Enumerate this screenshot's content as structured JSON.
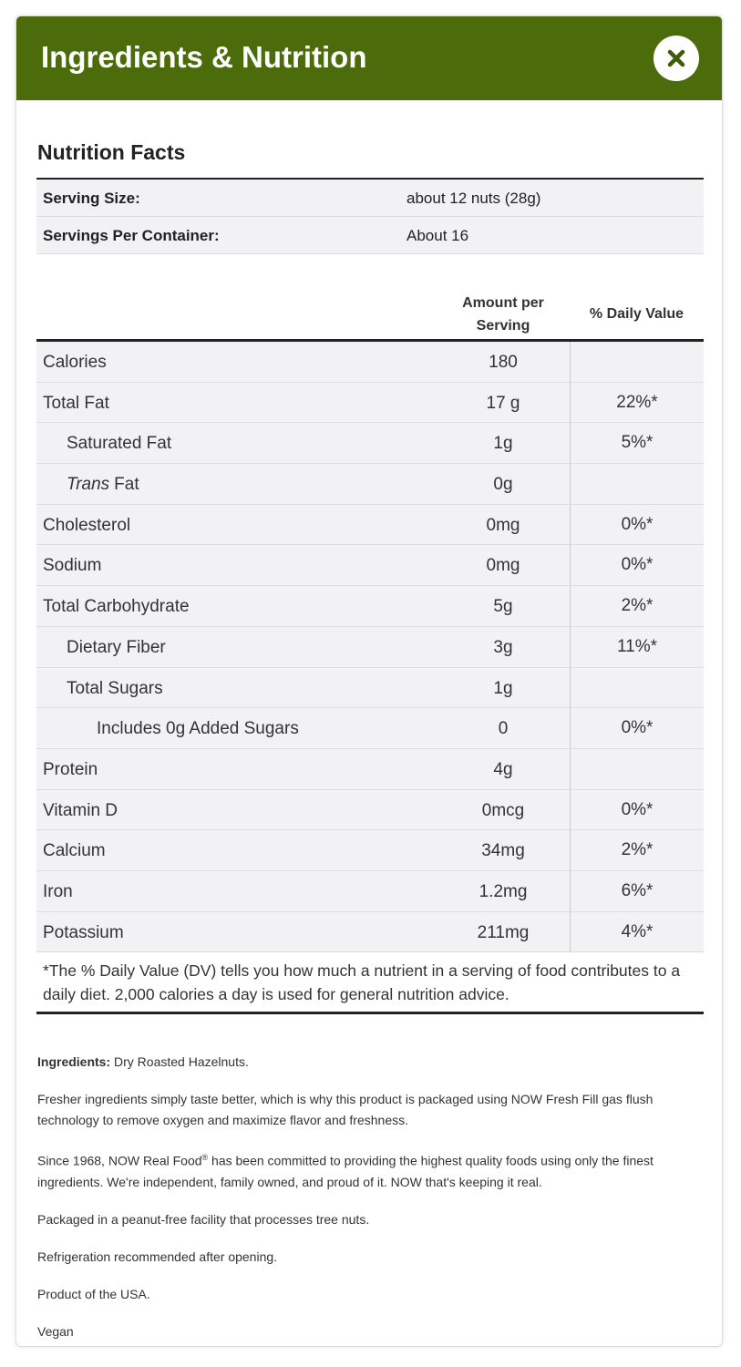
{
  "header": {
    "title": "Ingredients & Nutrition"
  },
  "nutrition": {
    "title": "Nutrition Facts",
    "serving": [
      {
        "label": "Serving Size:",
        "value": "about 12 nuts (28g)"
      },
      {
        "label": "Servings Per Container:",
        "value": "About 16"
      }
    ],
    "columns": [
      "Amount per Serving",
      "% Daily Value"
    ],
    "rows": [
      {
        "name": "Calories",
        "level": 0,
        "amount": "180"
      },
      {
        "name": "Total Fat",
        "level": 0,
        "amount": "17 g",
        "dv": "22%*"
      },
      {
        "name": "Saturated Fat",
        "level": 1,
        "amount": "1g",
        "dv": "5%*"
      },
      {
        "name_emphasis": "Trans",
        "name": "Fat",
        "level": 1,
        "amount": "0g"
      },
      {
        "name": "Cholesterol",
        "level": 0,
        "amount": "0mg",
        "dv": "0%*"
      },
      {
        "name": "Sodium",
        "level": 0,
        "amount": "0mg",
        "dv": "0%*"
      },
      {
        "name": "Total Carbohydrate",
        "level": 0,
        "amount": "5g",
        "dv": "2%*"
      },
      {
        "name": "Dietary Fiber",
        "level": 1,
        "amount": "3g",
        "dv": "11%*"
      },
      {
        "name": "Total Sugars",
        "level": 1,
        "amount": "1g"
      },
      {
        "name": "Includes 0g Added Sugars",
        "level": 2,
        "amount": "0",
        "dv": "0%*"
      },
      {
        "name": "Protein",
        "level": 0,
        "amount": "4g"
      },
      {
        "name": "Vitamin D",
        "level": 0,
        "amount": "0mcg",
        "dv": "0%*"
      },
      {
        "name": "Calcium",
        "level": 0,
        "amount": "34mg",
        "dv": "2%*"
      },
      {
        "name": "Iron",
        "level": 0,
        "amount": "1.2mg",
        "dv": "6%*"
      },
      {
        "name": "Potassium",
        "level": 0,
        "amount": "211mg",
        "dv": "4%*"
      }
    ],
    "footnote": "*The % Daily Value (DV) tells you how much a nutrient in a serving of food contributes to a daily diet. 2,000 calories a day is used for general nutrition advice."
  },
  "details": {
    "ingredients": {
      "label": "Ingredients:",
      "text": "Dry Roasted Hazelnuts."
    },
    "paragraphs": [
      {
        "text": "Fresher ingredients simply taste better, which is why this product is packaged using NOW Fresh Fill gas flush technology to remove oxygen and maximize flavor and freshness."
      },
      {
        "text": "Since 1968, NOW Real Food",
        "sup": "®",
        "after": " has been committed to providing the highest quality foods using only the finest ingredients. We're independent, family owned, and proud of it. NOW that's keeping it real."
      },
      {
        "text": "Packaged in a peanut-free facility that processes tree nuts."
      },
      {
        "text": "Refrigeration recommended after opening."
      },
      {
        "text": "Product of the USA."
      },
      {
        "text": "Vegan"
      }
    ]
  }
}
